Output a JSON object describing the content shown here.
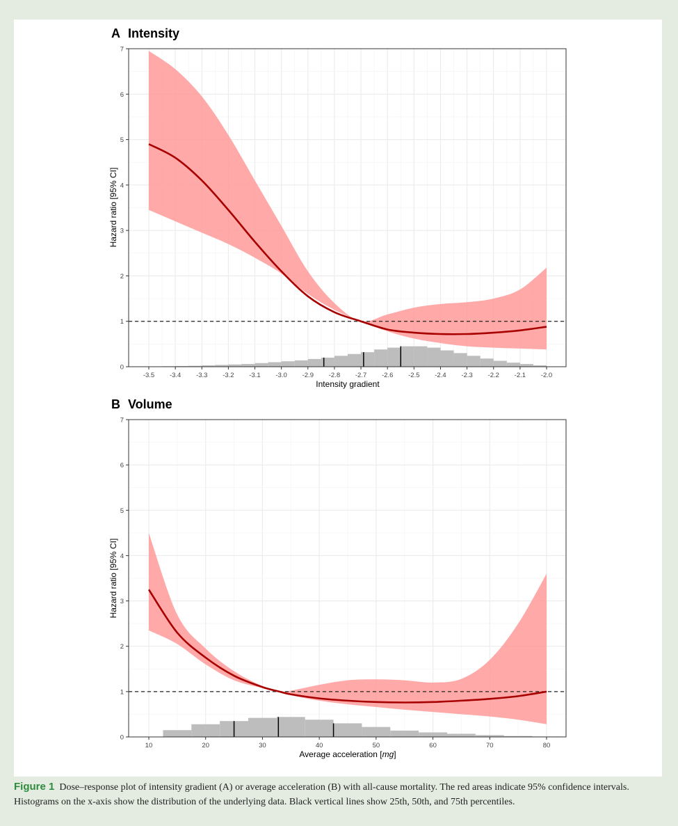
{
  "chart_data": [
    {
      "type": "line",
      "panel_letter": "A",
      "title": "Intensity",
      "xlabel": "Intensity gradient",
      "ylabel": "Hazard ratio [95% CI]",
      "xlim": [
        -3.5,
        -2.0
      ],
      "ylim": [
        0,
        7
      ],
      "x_ticks": [
        "-3.5",
        "-3.4",
        "-3.3",
        "-3.2",
        "-3.1",
        "-3.0",
        "-2.9",
        "-2.8",
        "-2.7",
        "-2.6",
        "-2.5",
        "-2.4",
        "-2.3",
        "-2.2",
        "-2.1",
        "-2.0"
      ],
      "y_ticks": [
        "0",
        "1",
        "2",
        "3",
        "4",
        "5",
        "6",
        "7"
      ],
      "reference_line": 1,
      "grid": true,
      "series": [
        {
          "x": [
            -3.5,
            -3.4,
            -3.3,
            -3.2,
            -3.1,
            -3.0,
            -2.9,
            -2.8,
            -2.7,
            -2.6,
            -2.5,
            -2.4,
            -2.3,
            -2.2,
            -2.1,
            -2.0
          ],
          "hr": [
            4.9,
            4.6,
            4.1,
            3.45,
            2.75,
            2.1,
            1.55,
            1.2,
            1.0,
            0.82,
            0.75,
            0.72,
            0.72,
            0.75,
            0.8,
            0.88
          ],
          "ci_lower": [
            3.45,
            3.2,
            2.95,
            2.7,
            2.4,
            2.05,
            1.6,
            1.25,
            1.0,
            0.78,
            0.62,
            0.52,
            0.45,
            0.42,
            0.4,
            0.38
          ],
          "ci_upper": [
            6.95,
            6.55,
            5.95,
            5.1,
            4.1,
            3.1,
            2.1,
            1.4,
            1.0,
            1.15,
            1.3,
            1.38,
            1.42,
            1.5,
            1.7,
            2.18
          ]
        }
      ],
      "histogram": {
        "x_start": -3.5,
        "bin_width": 0.05,
        "heights": [
          0.005,
          0.01,
          0.015,
          0.02,
          0.03,
          0.04,
          0.05,
          0.06,
          0.08,
          0.1,
          0.12,
          0.14,
          0.17,
          0.2,
          0.24,
          0.28,
          0.32,
          0.38,
          0.42,
          0.45,
          0.45,
          0.42,
          0.36,
          0.3,
          0.24,
          0.18,
          0.13,
          0.09,
          0.06,
          0.03
        ]
      },
      "percentiles": [
        {
          "label": "25th",
          "x": -2.84
        },
        {
          "label": "50th",
          "x": -2.69
        },
        {
          "label": "75th",
          "x": -2.55
        }
      ]
    },
    {
      "type": "line",
      "panel_letter": "B",
      "title": "Volume",
      "xlabel": "Average acceleration [mg]",
      "xlabel_prefix": "Average acceleration [",
      "xlabel_italic": "mg",
      "xlabel_suffix": "]",
      "ylabel": "Hazard ratio [95% CI]",
      "xlim": [
        10,
        80
      ],
      "ylim": [
        0,
        7
      ],
      "x_ticks": [
        "10",
        "20",
        "30",
        "40",
        "50",
        "60",
        "70",
        "80"
      ],
      "y_ticks": [
        "0",
        "1",
        "2",
        "3",
        "4",
        "5",
        "6",
        "7"
      ],
      "reference_line": 1,
      "grid": true,
      "series": [
        {
          "x": [
            10,
            15,
            20,
            25,
            30,
            33,
            35,
            40,
            45,
            50,
            55,
            60,
            65,
            70,
            75,
            80
          ],
          "hr": [
            3.25,
            2.3,
            1.75,
            1.35,
            1.1,
            1.0,
            0.94,
            0.85,
            0.8,
            0.77,
            0.76,
            0.77,
            0.8,
            0.84,
            0.9,
            1.0
          ],
          "ci_lower": [
            2.35,
            2.05,
            1.6,
            1.25,
            1.08,
            1.0,
            0.92,
            0.8,
            0.72,
            0.66,
            0.6,
            0.55,
            0.5,
            0.45,
            0.38,
            0.28
          ],
          "ci_upper": [
            4.5,
            2.7,
            1.95,
            1.45,
            1.12,
            1.0,
            1.02,
            1.15,
            1.25,
            1.27,
            1.25,
            1.2,
            1.28,
            1.7,
            2.5,
            3.6
          ]
        }
      ],
      "histogram": {
        "x_start": 12.5,
        "bin_width": 5,
        "heights": [
          0.15,
          0.28,
          0.35,
          0.42,
          0.44,
          0.38,
          0.3,
          0.22,
          0.14,
          0.1,
          0.07,
          0.04,
          0.02,
          0.01
        ]
      },
      "percentiles": [
        {
          "label": "25th",
          "x": 25
        },
        {
          "label": "50th",
          "x": 32.8
        },
        {
          "label": "75th",
          "x": 42.5
        }
      ]
    }
  ],
  "caption": {
    "figure_label": "Figure 1",
    "text": "Dose–response plot of intensity gradient (A) or average acceleration (B) with all-cause mortality. The red areas indicate 95% confidence intervals. Histograms on the x-axis show the distribution of the underlying data. Black vertical lines show 25th, 50th, and 75th percentiles."
  },
  "colors": {
    "line": "#a80000",
    "ci_fill": "#ff9a9a",
    "histogram": "#bdbdbd",
    "grid": "#ebebeb",
    "frame_bg": "#e4ece1",
    "caption_label": "#2e8b3d"
  }
}
